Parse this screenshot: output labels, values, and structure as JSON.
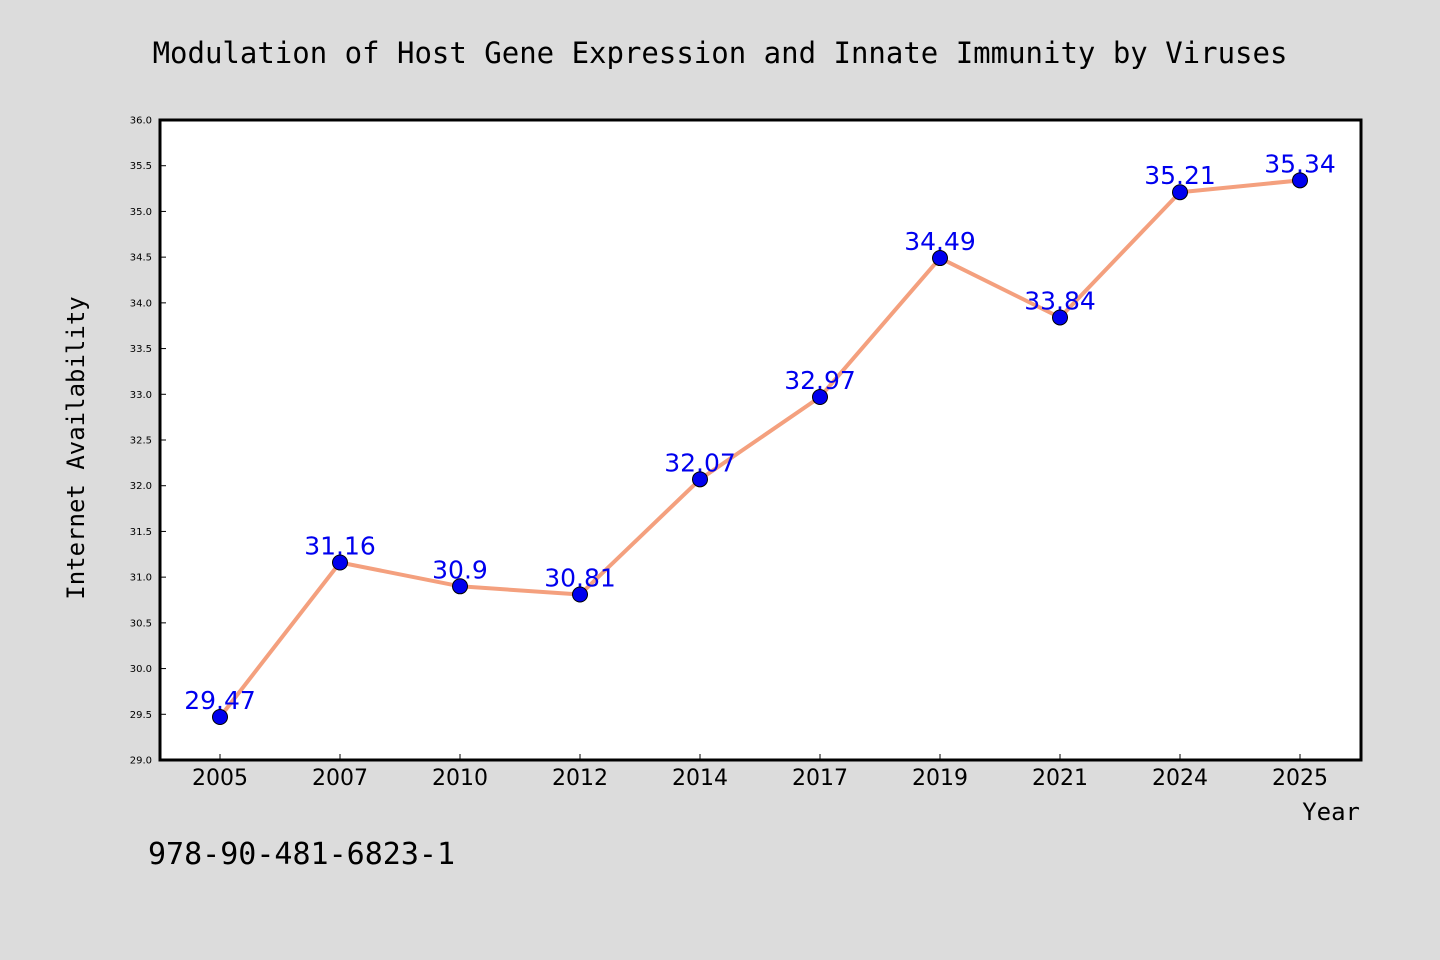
{
  "chart_data": {
    "type": "line",
    "title": "Modulation of Host Gene Expression and Innate Immunity by Viruses",
    "xlabel": "Year",
    "ylabel": "Internet Availability",
    "categories": [
      "2005",
      "2007",
      "2010",
      "2012",
      "2014",
      "2017",
      "2019",
      "2021",
      "2024",
      "2025"
    ],
    "values": [
      29.47,
      31.16,
      30.9,
      30.81,
      32.07,
      32.97,
      34.49,
      33.84,
      35.21,
      35.34
    ],
    "data_labels": [
      "29.47",
      "31.16",
      "30.9",
      "30.81",
      "32.07",
      "32.97",
      "34.49",
      "33.84",
      "35.21",
      "35.34"
    ],
    "ylim": [
      29.0,
      36.0
    ],
    "yticks": [
      "29.0",
      "29.5",
      "30.0",
      "30.5",
      "31.0",
      "31.5",
      "32.0",
      "32.5",
      "33.0",
      "33.5",
      "34.0",
      "34.5",
      "35.0",
      "35.5",
      "36.0"
    ],
    "grid": false,
    "line_color": "#f4a07e",
    "marker_color": "#0000ee",
    "label_color": "#0000ee"
  },
  "footer": {
    "isbn": "978-90-481-6823-1"
  }
}
